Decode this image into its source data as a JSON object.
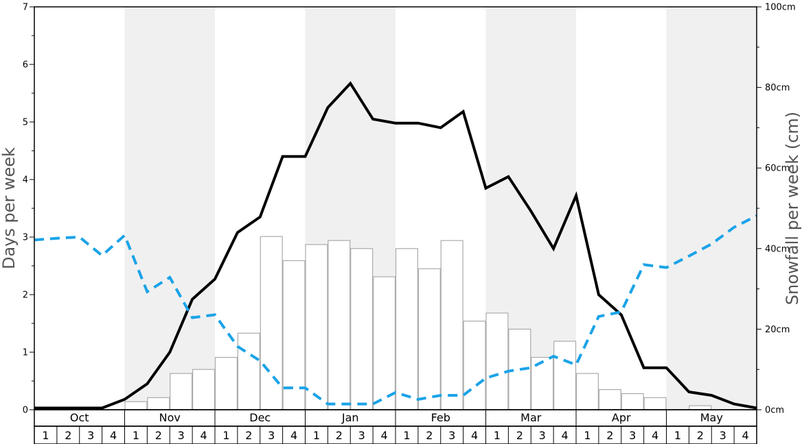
{
  "chart_data": {
    "type": "bar+line",
    "left_axis": {
      "label": "Days per week",
      "range": [
        0,
        7
      ],
      "ticks": [
        "0",
        "1",
        "2",
        "3",
        "4",
        "5",
        "6",
        "7"
      ]
    },
    "right_axis": {
      "label": "Snowfall per week (cm)",
      "range": [
        0,
        100
      ],
      "ticks": [
        "0cm",
        "20cm",
        "40cm",
        "60cm",
        "80cm",
        "100cm"
      ]
    },
    "months": [
      "Oct",
      "Nov",
      "Dec",
      "Jan",
      "Feb",
      "Mar",
      "Apr",
      "May"
    ],
    "weeks": [
      "1",
      "2",
      "3",
      "4"
    ],
    "shaded_months": [
      "Nov",
      "Jan",
      "Mar",
      "May"
    ],
    "grid": false,
    "colors": {
      "shade": "#f0f0f0",
      "bar_stroke": "#aaaaaa",
      "black_line": "#000000",
      "blue_line": "#1aa3e8"
    },
    "series": [
      {
        "kind": "bar",
        "axis": "right",
        "values": [
          0,
          0,
          0,
          0,
          2,
          3,
          9,
          10,
          13,
          19,
          43,
          37,
          41,
          42,
          40,
          33,
          40,
          35,
          42,
          22,
          24,
          20,
          13,
          17,
          9,
          5,
          4,
          3,
          0,
          1,
          0,
          0
        ]
      },
      {
        "kind": "line",
        "style": "solid",
        "axis": "left",
        "values": [
          0.03,
          0.03,
          0.03,
          0.03,
          0.18,
          0.45,
          1.0,
          1.92,
          2.27,
          3.08,
          3.35,
          4.4,
          4.4,
          5.25,
          5.67,
          5.05,
          4.98,
          4.98,
          4.9,
          5.18,
          3.85,
          4.05,
          3.45,
          2.8,
          3.72,
          2.0,
          1.65,
          0.73,
          0.73,
          0.31,
          0.25,
          0.1,
          0.03
        ]
      },
      {
        "kind": "line",
        "style": "dashed",
        "axis": "left",
        "values": [
          2.95,
          2.98,
          3.0,
          2.68,
          3.03,
          2.05,
          2.3,
          1.6,
          1.65,
          1.1,
          0.85,
          0.38,
          0.38,
          0.1,
          0.1,
          0.1,
          0.3,
          0.18,
          0.25,
          0.25,
          0.55,
          0.67,
          0.73,
          0.93,
          0.78,
          1.62,
          1.7,
          2.52,
          2.47,
          2.67,
          2.88,
          3.17,
          3.37
        ]
      }
    ]
  }
}
